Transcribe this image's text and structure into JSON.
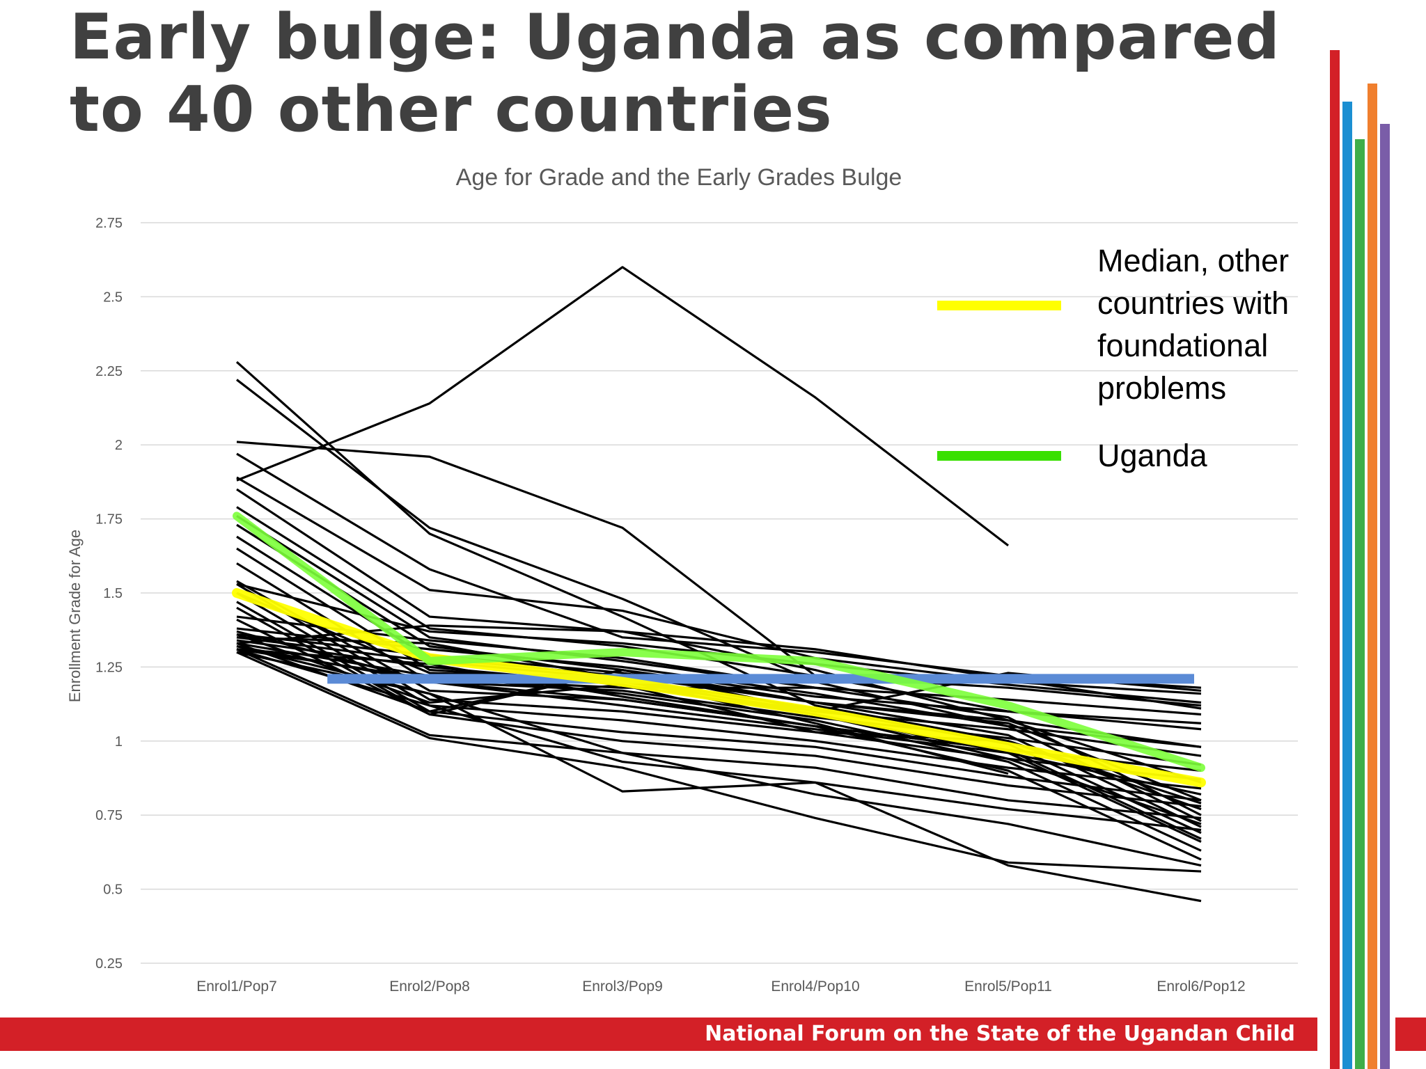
{
  "slide": {
    "title": "Early bulge: Uganda as compared to 40 other countries",
    "footer": "National Forum on the State of the Ugandan Child",
    "colors": {
      "title": "#404040",
      "footer_bg": "#D32027",
      "deco_bars": [
        "#D32027",
        "#1B8FD2",
        "#3FAE49",
        "#F07F2E",
        "#7A5DA8"
      ]
    }
  },
  "legend": {
    "median_label": "Median, other countries with foundational problems",
    "uganda_label": "Uganda"
  },
  "chart_data": {
    "type": "line",
    "title": "Age for Grade and the Early Grades Bulge",
    "xlabel": "",
    "ylabel": "Enrollment Grade for Age",
    "categories": [
      "Enrol1/Pop7",
      "Enrol2/Pop8",
      "Enrol3/Pop9",
      "Enrol4/Pop10",
      "Enrol5/Pop11",
      "Enrol6/Pop12"
    ],
    "ylim": [
      0.25,
      2.75
    ],
    "yticks": [
      0.25,
      0.5,
      0.75,
      1,
      1.25,
      1.5,
      1.75,
      2,
      2.25,
      2.5,
      2.75
    ],
    "ytick_labels": [
      "0.25",
      "0.5",
      "0.75",
      "1",
      "1.25",
      "1.5",
      "1.75",
      "2",
      "2.25",
      "2.5",
      "2.75"
    ],
    "grid": true,
    "legend_position": "top-right",
    "highlight_series": [
      {
        "name": "Median, other countries with foundational problems",
        "color": "#FFFF00",
        "width": 14,
        "values": [
          1.5,
          1.28,
          1.2,
          1.1,
          0.98,
          0.86
        ]
      },
      {
        "name": "Uganda",
        "color": "#7CFF3A",
        "width": 12,
        "values": [
          1.76,
          1.27,
          1.3,
          1.27,
          1.12,
          0.91
        ]
      }
    ],
    "reference_line": {
      "color": "#5B8BD6",
      "width": 14,
      "y": 1.21,
      "x_start": 0.47,
      "x_end": 5.0
    },
    "country_series": [
      {
        "values": [
          2.28,
          1.7,
          1.42,
          1.12,
          1.0,
          0.79
        ]
      },
      {
        "values": [
          2.22,
          1.72,
          1.48,
          1.2,
          1.05,
          0.98
        ]
      },
      {
        "values": [
          2.01,
          1.96,
          1.72,
          1.22,
          1.1,
          1.04
        ]
      },
      {
        "values": [
          1.88,
          2.14,
          2.6,
          2.16,
          1.66,
          null
        ]
      },
      {
        "values": [
          1.97,
          1.58,
          1.35,
          1.3,
          1.22,
          1.18
        ]
      },
      {
        "values": [
          1.89,
          1.51,
          1.44,
          1.28,
          1.2,
          1.16
        ]
      },
      {
        "values": [
          1.85,
          1.42,
          1.37,
          1.31,
          1.21,
          1.11
        ]
      },
      {
        "values": [
          1.79,
          1.38,
          1.32,
          1.22,
          1.18,
          1.12
        ]
      },
      {
        "values": [
          1.76,
          1.35,
          1.27,
          1.18,
          1.14,
          1.09
        ]
      },
      {
        "values": [
          1.73,
          1.32,
          1.24,
          1.15,
          1.1,
          1.06
        ]
      },
      {
        "values": [
          1.69,
          1.28,
          1.22,
          1.13,
          1.07,
          0.98
        ]
      },
      {
        "values": [
          1.65,
          1.24,
          1.2,
          1.1,
          1.04,
          0.95
        ]
      },
      {
        "values": [
          1.6,
          1.2,
          1.17,
          1.08,
          1.01,
          0.92
        ]
      },
      {
        "values": [
          1.54,
          1.17,
          1.14,
          1.05,
          0.97,
          0.9
        ]
      },
      {
        "values": [
          1.53,
          1.14,
          1.1,
          1.03,
          0.94,
          0.87
        ]
      },
      {
        "values": [
          1.5,
          1.12,
          1.07,
          1.0,
          0.91,
          0.84
        ]
      },
      {
        "values": [
          1.47,
          1.1,
          1.03,
          0.98,
          0.88,
          0.8
        ]
      },
      {
        "values": [
          1.45,
          1.09,
          1.0,
          0.95,
          0.85,
          0.78
        ]
      },
      {
        "values": [
          1.42,
          1.34,
          1.28,
          1.18,
          1.08,
          0.75
        ]
      },
      {
        "values": [
          1.38,
          1.31,
          1.25,
          1.16,
          1.05,
          0.73
        ]
      },
      {
        "values": [
          1.36,
          1.29,
          1.23,
          1.13,
          1.02,
          0.71
        ]
      },
      {
        "values": [
          1.35,
          1.27,
          1.21,
          1.11,
          0.99,
          0.69
        ]
      },
      {
        "values": [
          1.34,
          1.25,
          1.19,
          1.09,
          0.96,
          0.66
        ]
      },
      {
        "values": [
          1.33,
          1.22,
          1.16,
          1.07,
          0.93,
          0.63
        ]
      },
      {
        "values": [
          1.32,
          1.2,
          1.14,
          1.05,
          0.9,
          0.6
        ]
      },
      {
        "values": [
          1.32,
          1.16,
          0.96,
          0.91,
          0.8,
          0.74
        ]
      },
      {
        "values": [
          1.31,
          1.12,
          0.93,
          0.86,
          0.77,
          0.7
        ]
      },
      {
        "values": [
          1.31,
          1.02,
          0.96,
          0.82,
          0.72,
          0.58
        ]
      },
      {
        "values": [
          1.3,
          1.01,
          0.91,
          0.74,
          0.59,
          0.56
        ]
      },
      {
        "values": [
          1.3,
          1.16,
          0.83,
          0.86,
          0.58,
          0.46
        ]
      },
      {
        "values": [
          1.37,
          1.2,
          1.12,
          1.04,
          0.96,
          0.82
        ]
      },
      {
        "values": [
          1.33,
          1.1,
          1.24,
          1.1,
          1.23,
          1.17
        ]
      },
      {
        "values": [
          1.31,
          1.21,
          1.18,
          1.18,
          null,
          null
        ]
      },
      {
        "values": [
          1.5,
          1.23,
          1.21,
          1.06,
          0.89,
          null
        ]
      },
      {
        "values": [
          1.41,
          1.09,
          1.24,
          1.13,
          1.06,
          0.8
        ]
      },
      {
        "values": [
          1.36,
          1.13,
          1.19,
          1.03,
          1.0,
          0.77
        ]
      },
      {
        "values": [
          1.35,
          1.33,
          1.21,
          1.09,
          0.94,
          0.72
        ]
      },
      {
        "values": [
          1.33,
          1.39,
          1.37,
          1.24,
          1.07,
          0.86
        ]
      },
      {
        "values": [
          1.31,
          1.26,
          1.15,
          1.05,
          0.97,
          0.67
        ]
      },
      {
        "values": [
          1.53,
          1.37,
          1.33,
          1.26,
          1.19,
          1.13
        ]
      }
    ]
  }
}
